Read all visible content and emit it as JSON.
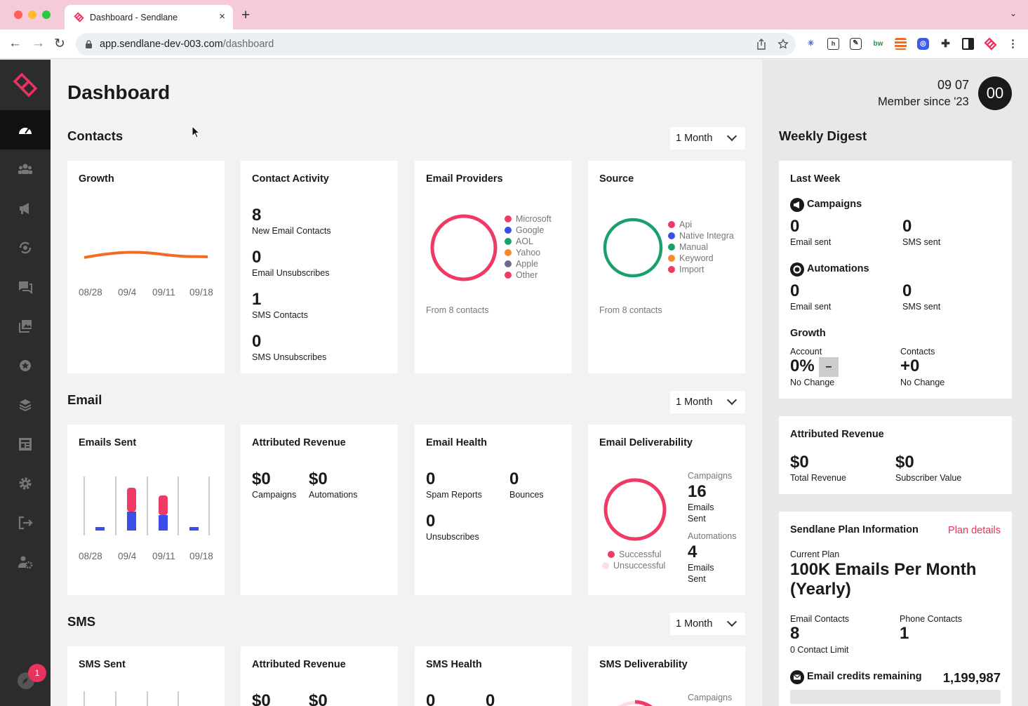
{
  "browser": {
    "tab_title": "Dashboard - Sendlane",
    "tab_close": "×",
    "new_tab": "+",
    "tabs_menu": "⌄",
    "url_domain": "app.sendlane-dev-003.com",
    "url_path": "/dashboard",
    "nav": {
      "back": "←",
      "forward": "→",
      "reload": "↻"
    }
  },
  "sidebar": {
    "items": [
      {
        "name": "dashboard-icon",
        "active": true
      },
      {
        "name": "contacts-icon"
      },
      {
        "name": "campaigns-icon"
      },
      {
        "name": "automations-icon"
      },
      {
        "name": "sms-icon"
      },
      {
        "name": "media-icon"
      },
      {
        "name": "badge-icon"
      },
      {
        "name": "integrations-icon"
      },
      {
        "name": "forms-icon"
      },
      {
        "name": "settings-icon"
      },
      {
        "name": "logout-icon"
      },
      {
        "name": "admin-icon"
      }
    ],
    "notification_count": "1"
  },
  "page": {
    "title": "Dashboard"
  },
  "contacts": {
    "section_title": "Contacts",
    "period": "1 Month",
    "growth": {
      "title": "Growth",
      "axis": [
        "08/28",
        "09/4",
        "09/11",
        "09/18"
      ]
    },
    "activity": {
      "title": "Contact Activity",
      "rows": [
        {
          "value": "8",
          "label": "New Email Contacts"
        },
        {
          "value": "0",
          "label": "Email Unsubscribes"
        },
        {
          "value": "1",
          "label": "SMS Contacts"
        },
        {
          "value": "0",
          "label": "SMS Unsubscribes"
        }
      ]
    },
    "providers": {
      "title": "Email Providers",
      "legend": [
        "Microsoft",
        "Google",
        "AOL",
        "Yahoo",
        "Apple",
        "Other"
      ],
      "colors": [
        "#ee3a64",
        "#3b4fe8",
        "#1aa06b",
        "#f58a2c",
        "#6b6b8f",
        "#ee3a64"
      ],
      "footer": "From 8 contacts"
    },
    "source": {
      "title": "Source",
      "legend": [
        "Api",
        "Native Integra",
        "Manual",
        "Keyword",
        "Import"
      ],
      "colors": [
        "#ee3a64",
        "#3b4fe8",
        "#1aa06b",
        "#f58a2c",
        "#ee3a64"
      ],
      "footer": "From 8 contacts"
    }
  },
  "email": {
    "section_title": "Email",
    "period": "1 Month",
    "sent": {
      "title": "Emails Sent",
      "axis": [
        "08/28",
        "09/4",
        "09/11",
        "09/18"
      ]
    },
    "revenue": {
      "title": "Attributed Revenue",
      "campaigns_value": "$0",
      "campaigns_label": "Campaigns",
      "automations_value": "$0",
      "automations_label": "Automations"
    },
    "health": {
      "title": "Email Health",
      "spam_value": "0",
      "spam_label": "Spam Reports",
      "bounces_value": "0",
      "bounces_label": "Bounces",
      "unsub_value": "0",
      "unsub_label": "Unsubscribes"
    },
    "deliverability": {
      "title": "Email Deliverability",
      "legend_successful": "Successful",
      "legend_unsuccessful": "Unsuccessful",
      "campaigns_label": "Campaigns",
      "campaigns_value": "16",
      "campaigns_sub1": "Emails",
      "campaigns_sub2": "Sent",
      "automations_label": "Automations",
      "automations_value": "4",
      "automations_sub1": "Emails",
      "automations_sub2": "Sent"
    }
  },
  "sms": {
    "section_title": "SMS",
    "period": "1 Month",
    "sent_title": "SMS Sent",
    "revenue_title": "Attributed Revenue",
    "revenue_campaigns": "$0",
    "revenue_automations": "$0",
    "health_title": "SMS Health",
    "health_a": "0",
    "health_b": "0",
    "deliverability_title": "SMS Deliverability",
    "deliverability_campaigns_label": "Campaigns"
  },
  "header": {
    "date": "09 07",
    "member_since": "Member since '23",
    "avatar_initials": "00"
  },
  "digest": {
    "title": "Weekly Digest",
    "last_week": {
      "title": "Last Week",
      "campaigns_title": "Campaigns",
      "campaigns_email": "0",
      "campaigns_email_label": "Email sent",
      "campaigns_sms": "0",
      "campaigns_sms_label": "SMS sent",
      "automations_title": "Automations",
      "automations_email": "0",
      "automations_email_label": "Email sent",
      "automations_sms": "0",
      "automations_sms_label": "SMS sent",
      "growth_title": "Growth",
      "account_label": "Account",
      "account_value": "0%",
      "account_badge": "–",
      "account_change": "No Change",
      "contacts_label": "Contacts",
      "contacts_value": "+0",
      "contacts_change": "No Change"
    },
    "revenue": {
      "title": "Attributed Revenue",
      "total_value": "$0",
      "total_label": "Total Revenue",
      "subscriber_value": "$0",
      "subscriber_label": "Subscriber Value"
    },
    "plan": {
      "title": "Sendlane Plan Information",
      "details_link": "Plan details",
      "current_label": "Current Plan",
      "plan_name_1": "100K Emails Per Month",
      "plan_name_2": "(Yearly)",
      "email_contacts_label": "Email Contacts",
      "email_contacts_value": "8",
      "contact_limit": "0 Contact Limit",
      "phone_contacts_label": "Phone Contacts",
      "phone_contacts_value": "1",
      "credits_label": "Email credits remaining",
      "credits_value": "1,199,987"
    }
  }
}
